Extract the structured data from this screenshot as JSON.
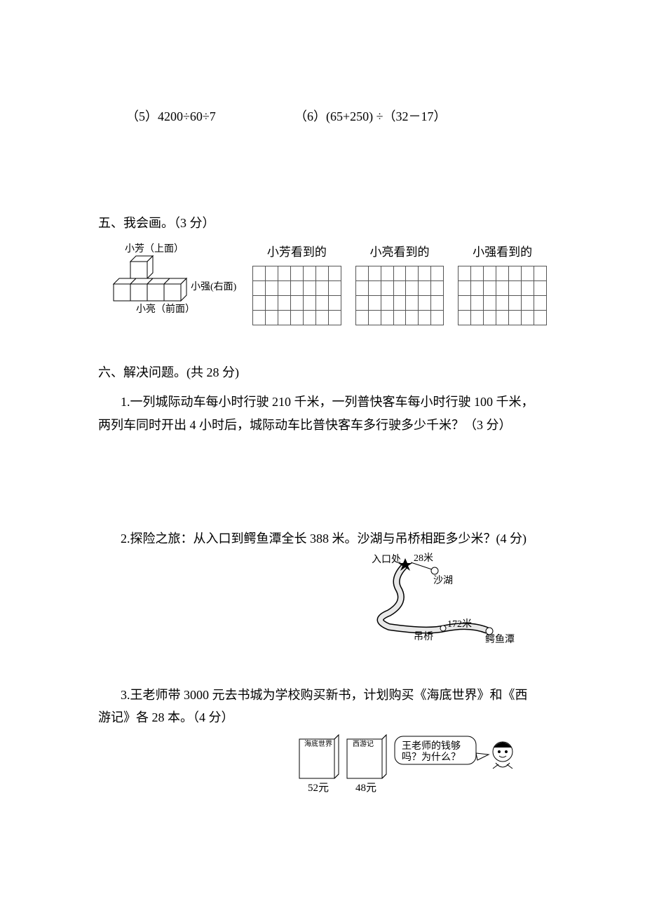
{
  "expressions": {
    "e5": "（5）4200÷60÷7",
    "e6": "（6）(65+250) ÷（32－17）"
  },
  "section5": {
    "title": "五、我会画。（3 分）",
    "cube_labels": {
      "top": "小芳（上面）",
      "right": "小强(右面)",
      "front": "小亮（前面）"
    },
    "grids": [
      {
        "title": "小芳看到的",
        "rows": 4,
        "cols": 7,
        "cell": 20
      },
      {
        "title": "小亮看到的",
        "rows": 4,
        "cols": 7,
        "cell": 20
      },
      {
        "title": "小强看到的",
        "rows": 4,
        "cols": 7,
        "cell": 20
      }
    ],
    "cube_style": {
      "stroke": "#000000",
      "fill": "#ffffff",
      "stroke_width": 1
    }
  },
  "section6": {
    "title": "六、解决问题。(共 28 分)",
    "q1": {
      "line1": "1.一列城际动车每小时行驶 210 千米，一列普快客车每小时行驶 100 千米，",
      "line2": "两列车同时开出 4 小时后，城际动车比普快客车多行驶多少千米？（3 分）"
    },
    "q2": {
      "text": "2.探险之旅：从入口到鳄鱼潭全长 388 米。沙湖与吊桥相距多少米？(4 分)",
      "map": {
        "entry_lbl": "入口处",
        "d1": "28米",
        "lake_lbl": "沙湖",
        "bridge_lbl": "吊桥",
        "d2": "172米",
        "croc_lbl": "鳄鱼潭",
        "stroke": "#000000",
        "path_fill": "#e8e8e8"
      }
    },
    "q3": {
      "line1": "3.王老师带 3000 元去书城为学校购买新书，计划购买《海底世界》和《西",
      "line2": "游记》各 28 本。（4 分）",
      "books": {
        "b1_title": "海底世界",
        "b1_price": "52元",
        "b2_title": "西游记",
        "b2_price": "48元",
        "bubble_l1": "王老师的钱够",
        "bubble_l2": "吗？为什么？",
        "stroke": "#000000",
        "fill": "#ffffff"
      }
    }
  }
}
